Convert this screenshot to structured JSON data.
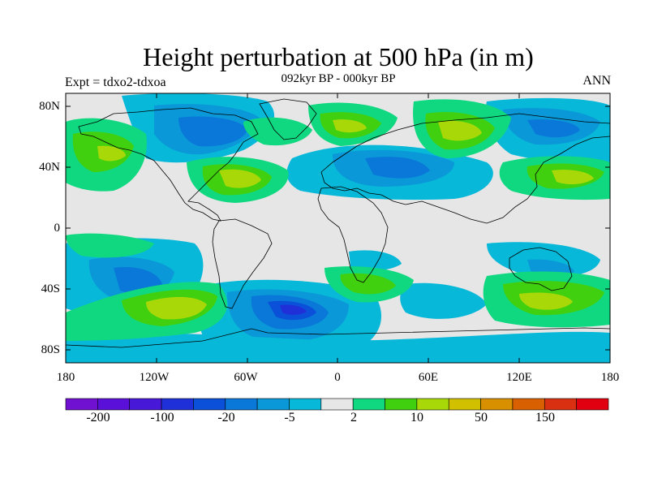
{
  "title": "Height perturbation at 500 hPa (in m)",
  "subtitle": "092kyr BP - 000kyr BP",
  "experiment": "Expt = tdxo2-tdxoa",
  "season": "ANN",
  "map": {
    "lat_ticks": [
      "80N",
      "40N",
      "0",
      "40S",
      "80S"
    ],
    "lon_ticks": [
      "180",
      "120W",
      "60W",
      "0",
      "60E",
      "120E",
      "180"
    ],
    "background_color": "#e6e6e6",
    "land_outline_color": "#000000"
  },
  "colorbar": {
    "colors": [
      "#7010d0",
      "#5a10d8",
      "#4818d8",
      "#2030d8",
      "#0a50d8",
      "#0a78d8",
      "#0a98d8",
      "#08b8d8",
      "#e6e6e6",
      "#10d880",
      "#40d010",
      "#a8d808",
      "#d0c000",
      "#d89000",
      "#d86000",
      "#d83010",
      "#e00010"
    ],
    "labels": [
      "-200",
      "-100",
      "-20",
      "-5",
      "2",
      "10",
      "50",
      "150"
    ]
  }
}
